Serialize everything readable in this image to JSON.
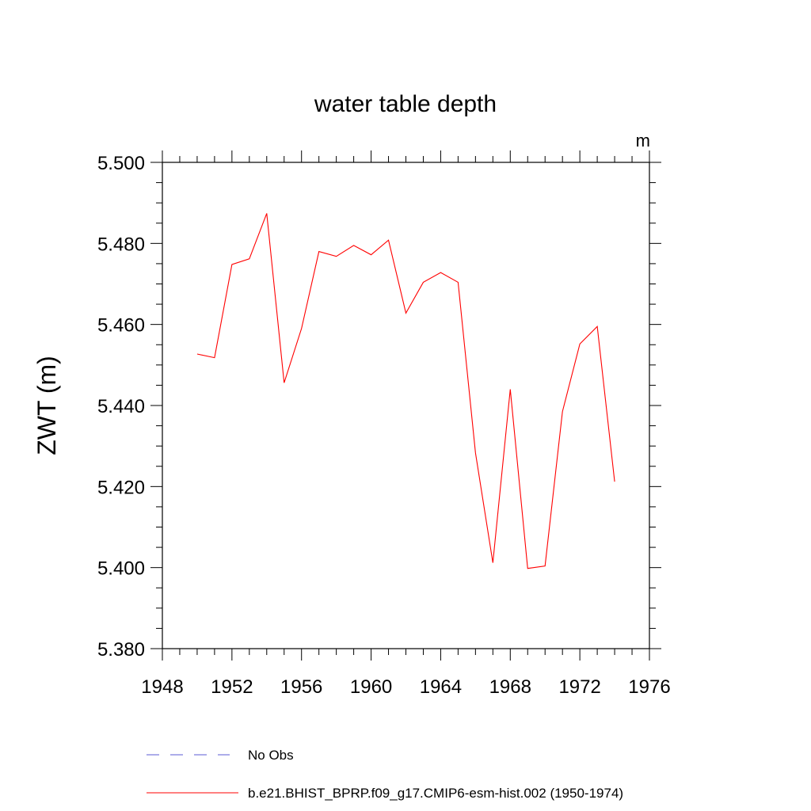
{
  "chart_data": {
    "type": "line",
    "title": "water table depth",
    "units_label": "m",
    "xlabel": "",
    "ylabel": "ZWT  (m)",
    "xlim": [
      1948,
      1976
    ],
    "ylim": [
      5.38,
      5.5
    ],
    "x_ticks": [
      1948,
      1952,
      1956,
      1960,
      1964,
      1968,
      1972,
      1976
    ],
    "y_ticks": [
      5.38,
      5.4,
      5.42,
      5.44,
      5.46,
      5.48,
      5.5
    ],
    "y_tick_labels": [
      "5.380",
      "5.400",
      "5.420",
      "5.440",
      "5.460",
      "5.480",
      "5.500"
    ],
    "series": [
      {
        "name": "b.e21.BHIST_BPRP.f09_g17.CMIP6-esm-hist.002 (1950-1974)",
        "color": "#ff0000",
        "style": "solid",
        "x": [
          1950,
          1951,
          1952,
          1953,
          1954,
          1955,
          1956,
          1957,
          1958,
          1959,
          1960,
          1961,
          1962,
          1963,
          1964,
          1965,
          1966,
          1967,
          1968,
          1969,
          1970,
          1971,
          1972,
          1973,
          1974
        ],
        "values": [
          5.4527,
          5.4518,
          5.4748,
          5.4762,
          5.4874,
          5.4456,
          5.459,
          5.478,
          5.4768,
          5.4795,
          5.4772,
          5.4808,
          5.4628,
          5.4704,
          5.4728,
          5.4704,
          5.4283,
          5.4012,
          5.444,
          5.3998,
          5.4004,
          5.4385,
          5.4552,
          5.4595,
          5.4212
        ]
      }
    ],
    "legend": [
      {
        "label": "No Obs",
        "color": "#5b5bd6",
        "style": "dashed"
      },
      {
        "label": "b.e21.BHIST_BPRP.f09_g17.CMIP6-esm-hist.002 (1950-1974)",
        "color": "#ff0000",
        "style": "solid"
      }
    ]
  }
}
